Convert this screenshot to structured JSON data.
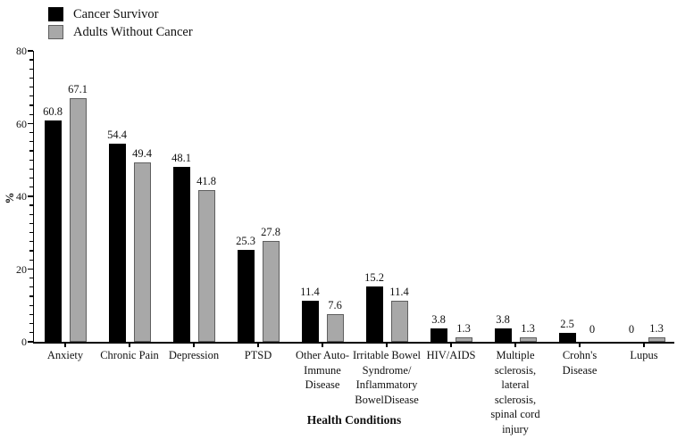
{
  "chart_data": {
    "type": "bar",
    "title": "",
    "xlabel": "Health Conditions",
    "ylabel": "%",
    "ylim": [
      0,
      80
    ],
    "y_major_ticks": [
      0,
      20,
      40,
      60,
      80
    ],
    "y_minor_step": 2.5,
    "grid": false,
    "legend_position": "top-left",
    "categories": [
      "Anxiety",
      "Chronic Pain",
      "Depression",
      "PTSD",
      "Other Auto-\nImmune\nDisease",
      "Irritable Bowel\nSyndrome/\nInflammatory\nBowelDisease",
      "HIV/AIDS",
      "Multiple\nsclerosis,\nlateral\nsclerosis,\nspinal cord\ninjury",
      "Crohn's\nDisease",
      "Lupus"
    ],
    "series": [
      {
        "name": "Cancer Survivor",
        "color": "#000000",
        "border": "#000000",
        "values": [
          60.8,
          54.4,
          48.1,
          25.3,
          11.4,
          15.2,
          3.8,
          3.8,
          2.5,
          0
        ],
        "labels": [
          "60.8",
          "54.4",
          "48.1",
          "25.3",
          "11.4",
          "15.2",
          "3.8",
          "3.8",
          "2.5",
          "0"
        ]
      },
      {
        "name": "Adults Without Cancer",
        "color": "#a8a8a8",
        "border": "#5f5f5f",
        "values": [
          67.1,
          49.4,
          41.8,
          27.8,
          7.6,
          11.4,
          1.3,
          1.3,
          0,
          1.3
        ],
        "labels": [
          "67.1",
          "49.4",
          "41.8",
          "27.8",
          "7.6",
          "11.4",
          "1.3",
          "1.3",
          "0",
          "1.3"
        ]
      }
    ]
  }
}
